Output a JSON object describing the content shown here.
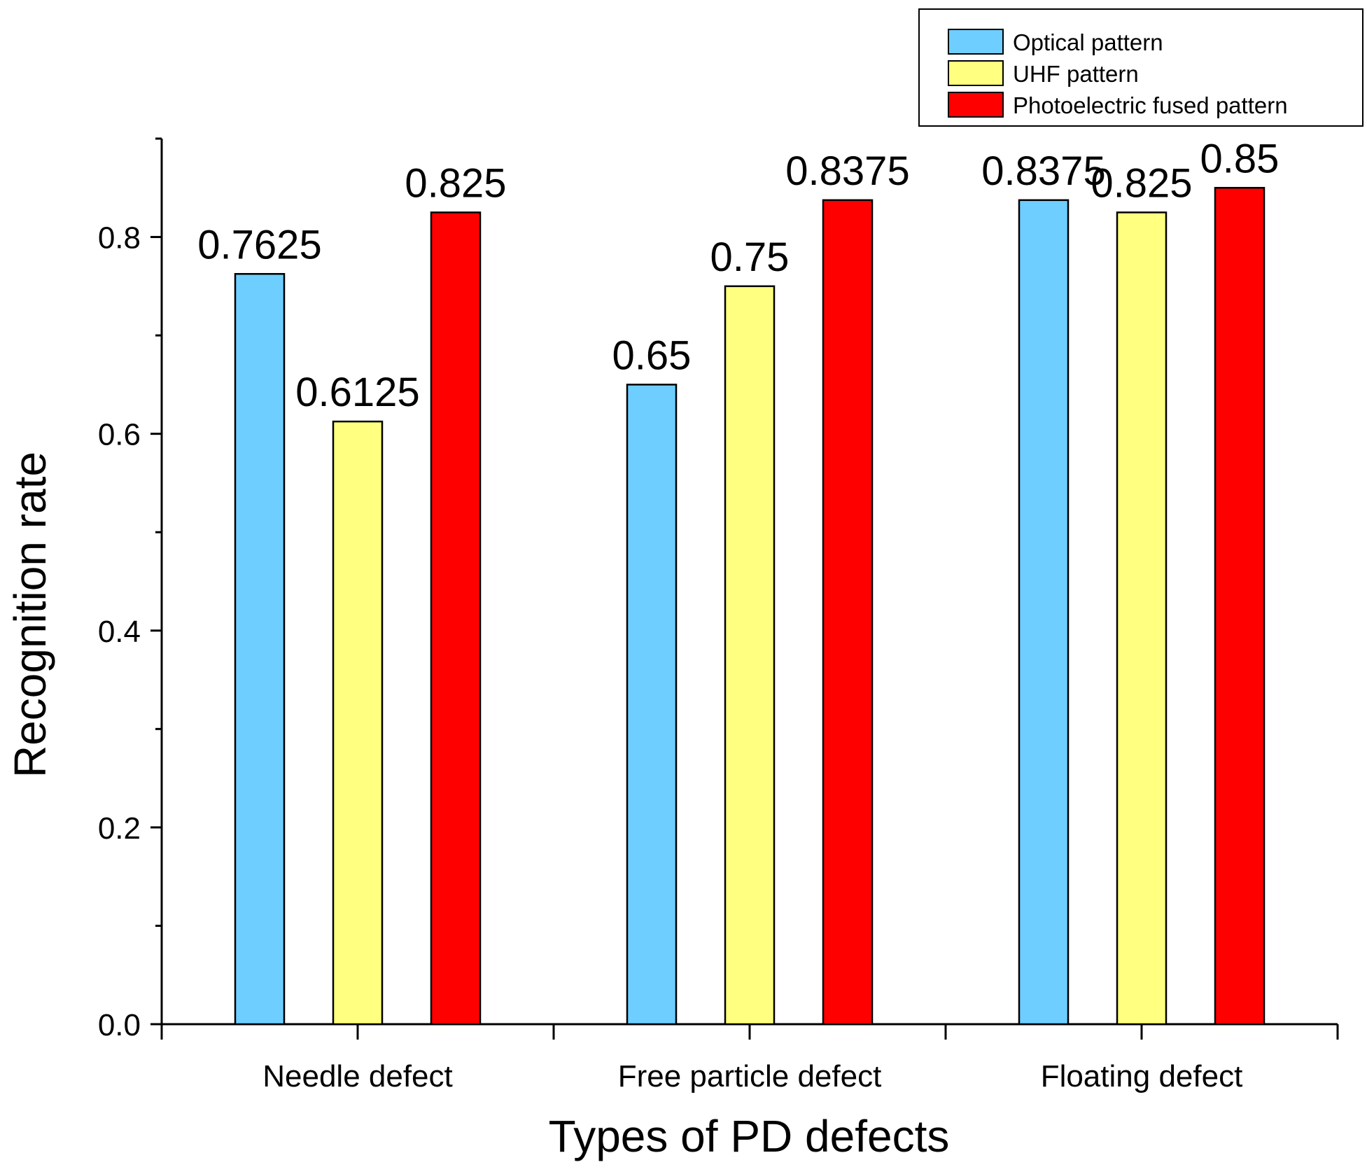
{
  "chart_data": {
    "type": "bar",
    "title": "",
    "xlabel": "Types of PD defects",
    "ylabel": "Recognition rate",
    "ylim": [
      0,
      0.9
    ],
    "yticks": [
      "0.0",
      "0.2",
      "0.4",
      "0.6",
      "0.8"
    ],
    "grid": false,
    "legend_position": "top-right",
    "categories": [
      "Needle defect",
      "Free particle defect",
      "Floating defect"
    ],
    "series": [
      {
        "name": "Optical pattern",
        "color": "#6ECEFF",
        "values": [
          0.7625,
          0.65,
          0.8375
        ],
        "labels": [
          "0.7625",
          "0.65",
          "0.8375"
        ]
      },
      {
        "name": "UHF pattern",
        "color": "#FFFF80",
        "values": [
          0.6125,
          0.75,
          0.825
        ],
        "labels": [
          "0.6125",
          "0.75",
          "0.825"
        ]
      },
      {
        "name": "Photoelectric fused pattern",
        "color": "#FF0000",
        "values": [
          0.825,
          0.8375,
          0.85
        ],
        "labels": [
          "0.825",
          "0.8375",
          "0.85"
        ]
      }
    ]
  }
}
